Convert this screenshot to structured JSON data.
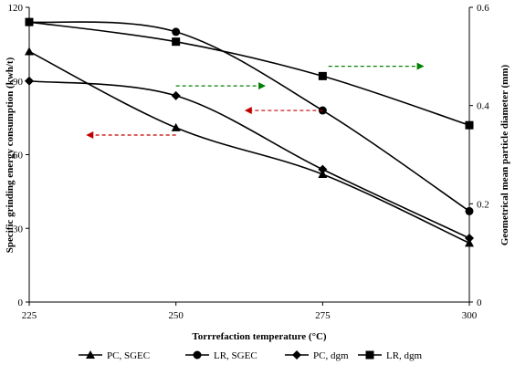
{
  "chart_data": {
    "type": "line",
    "title": "",
    "xlabel": "Torrrefaction  temperature  (°C)",
    "ylabel_left": "Specific grinding energy consumption  (kwh/t)",
    "ylabel_right": "Geometrical  mean particle  diameter  (mm)",
    "x": [
      225,
      250,
      275,
      300
    ],
    "x_ticks": [
      "225",
      "250",
      "275",
      "300"
    ],
    "xlim": [
      225,
      300
    ],
    "ylim_left": [
      0,
      120
    ],
    "ylim_right": [
      0,
      0.6
    ],
    "y_ticks_left": [
      "0",
      "30",
      "60",
      "90",
      "120"
    ],
    "y_ticks_right": [
      "0",
      "0.2",
      "0.4",
      "0.6"
    ],
    "grid": false,
    "legend_position": "bottom",
    "series": [
      {
        "name": "PC, SGEC",
        "axis": "left",
        "marker": "triangle",
        "values": [
          102,
          71,
          52,
          24
        ]
      },
      {
        "name": "LR, SGEC",
        "axis": "left",
        "marker": "circle",
        "values": [
          114,
          110,
          78,
          37
        ]
      },
      {
        "name": "PC, dgm",
        "axis": "right",
        "marker": "diamond",
        "values": [
          0.45,
          0.42,
          0.27,
          0.13
        ]
      },
      {
        "name": "LR, dgm",
        "axis": "right",
        "marker": "square",
        "values": [
          0.57,
          0.53,
          0.46,
          0.36
        ]
      }
    ],
    "annotations": [
      {
        "kind": "arrow",
        "direction": "left",
        "color": "#c00000",
        "from": [
          250,
          68
        ],
        "to": [
          235,
          68
        ],
        "axis": "left"
      },
      {
        "kind": "arrow",
        "direction": "left",
        "color": "#c00000",
        "from": [
          275,
          78
        ],
        "to": [
          262,
          78
        ],
        "axis": "left"
      },
      {
        "kind": "arrow",
        "direction": "right",
        "color": "#008000",
        "from": [
          250,
          88
        ],
        "to": [
          265,
          88
        ],
        "axis": "left"
      },
      {
        "kind": "arrow",
        "direction": "right",
        "color": "#008000",
        "from": [
          276,
          96
        ],
        "to": [
          292,
          96
        ],
        "axis": "left"
      }
    ]
  }
}
